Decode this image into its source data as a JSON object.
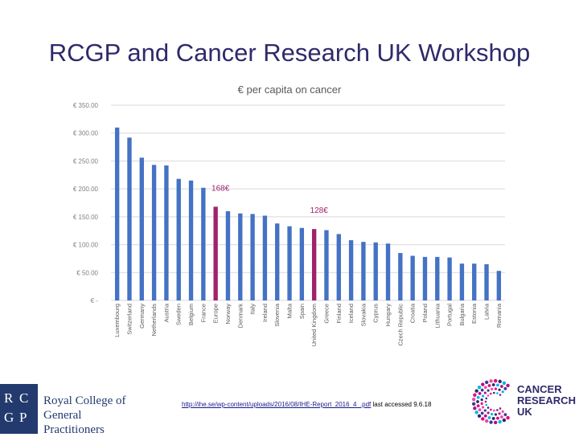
{
  "slide": {
    "title": "RCGP and Cancer Research UK Workshop"
  },
  "chart_data": {
    "type": "bar",
    "title": "€ per capita on cancer",
    "ylim": [
      0,
      350
    ],
    "yticks": [
      0,
      50,
      100,
      150,
      200,
      250,
      300,
      350
    ],
    "ytick_labels": [
      "€ -",
      "€ 50.00",
      "€ 100.00",
      "€ 150.00",
      "€ 200.00",
      "€ 250.00",
      "€ 300.00",
      "€ 350.00"
    ],
    "categories": [
      "Luxembourg",
      "Switzerland",
      "Germany",
      "Netherlands",
      "Austria",
      "Sweden",
      "Belgium",
      "France",
      "Europe",
      "Norway",
      "Denmark",
      "Italy",
      "Ireland",
      "Slovenia",
      "Malta",
      "Spain",
      "United Kingdom",
      "Greece",
      "Finland",
      "Iceland",
      "Slovakia",
      "Cyprus",
      "Hungary",
      "Czech Republic",
      "Croatia",
      "Poland",
      "Lithuania",
      "Portugal",
      "Bulgaria",
      "Estonia",
      "Latvia",
      "Romania"
    ],
    "values": [
      310,
      292,
      256,
      243,
      242,
      218,
      215,
      202,
      168,
      160,
      156,
      155,
      152,
      138,
      133,
      130,
      128,
      126,
      119,
      108,
      105,
      104,
      102,
      85,
      80,
      78,
      78,
      77,
      66,
      66,
      65,
      53
    ],
    "highlighted": [
      "Europe",
      "United Kingdom"
    ],
    "bar_color": "#4472c4",
    "highlight_color": "#a0226b",
    "annotations": [
      {
        "label": "168€",
        "category": "Europe"
      },
      {
        "label": "128€",
        "category": "United Kingdom"
      }
    ]
  },
  "footer": {
    "link_text": "http://ihe.se/wp-content/uploads/2016/08/IHE-Report_2016_4_.pdf",
    "accessed_text": "last accessed 9.6.18"
  },
  "logos": {
    "rcgp": {
      "letters": [
        "R",
        "C",
        "G",
        "P"
      ],
      "line1": "Royal College of",
      "line2": "General Practitioners"
    },
    "cruk": {
      "line1": "CANCER",
      "line2": "RESEARCH",
      "line3": "UK"
    }
  }
}
